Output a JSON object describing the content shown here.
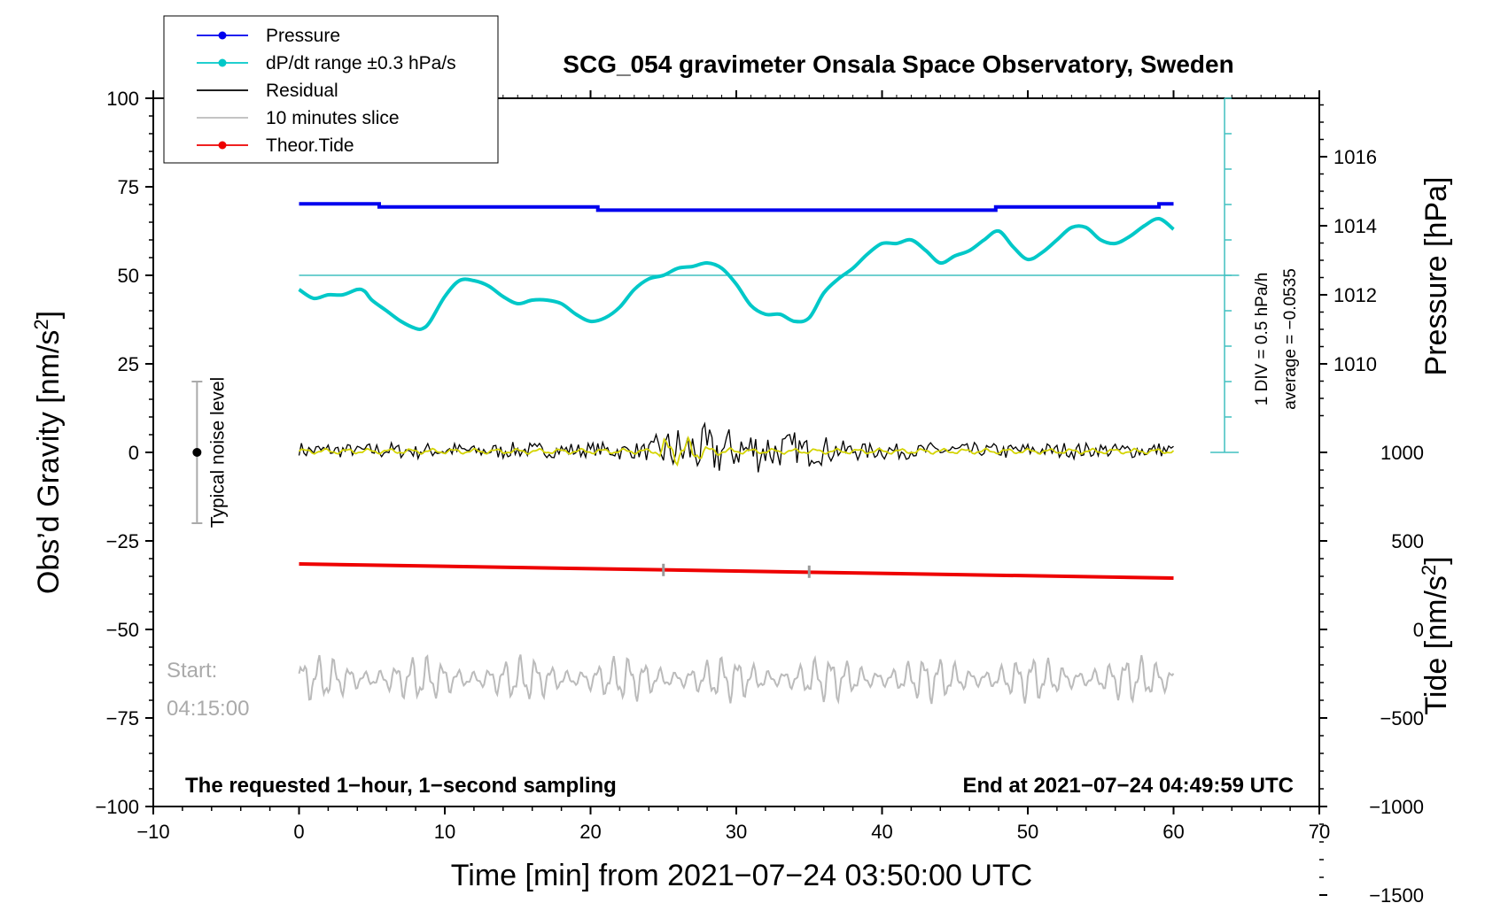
{
  "chart_data": {
    "type": "line",
    "title": "SCG_054 gravimeter Onsala Space Observatory, Sweden",
    "xlabel": "Time [min] from 2021−07−24 03:50:00 UTC",
    "ylabel_left_prefix": "Obs’d Gravity [nm/s",
    "ylabel_left_sup": "2",
    "ylabel_left_suffix": "]",
    "ylabel_pressure": "Pressure [hPa]",
    "ylabel_tide_prefix": "Tide [nm/s",
    "ylabel_tide_sup": "2",
    "ylabel_tide_suffix": "]",
    "xlim": [
      -10,
      70
    ],
    "ylim": [
      -100,
      100
    ],
    "x_ticks": [
      -10,
      0,
      10,
      20,
      30,
      40,
      50,
      60,
      70
    ],
    "x_tick_labels": [
      "−10",
      "0",
      "10",
      "20",
      "30",
      "40",
      "50",
      "60",
      "70"
    ],
    "y_ticks": [
      100,
      75,
      50,
      25,
      0,
      -25,
      -50,
      -75,
      -100
    ],
    "y_tick_labels": [
      "100",
      "75",
      "50",
      "25",
      "0",
      "−25",
      "−50",
      "−75",
      "−100"
    ],
    "pressure_axis": {
      "gravity_per_hpa": 9.75,
      "gravity_at_1010": 25,
      "ticks": [
        1010,
        1012,
        1014,
        1016
      ],
      "tick_labels": [
        "1010",
        "1012",
        "1014",
        "1016"
      ]
    },
    "tide_axis": {
      "gravity_per_unit": 0.05,
      "gravity_at_zero": -50,
      "ticks": [
        1000,
        500,
        0,
        -500,
        -1000,
        -1500
      ],
      "tick_labels": [
        "1000",
        "500",
        "0",
        "−500",
        "−1000",
        "−1500"
      ]
    },
    "legend": [
      {
        "label": "Pressure",
        "color": "#0000ee",
        "marker": true
      },
      {
        "label": "dP/dt range ±0.3 hPa/s",
        "color": "#00c8c8",
        "marker": true
      },
      {
        "label": "Residual",
        "color": "#000000",
        "marker": false
      },
      {
        "label": "10 minutes slice",
        "color": "#bbbbbb",
        "marker": false
      },
      {
        "label": "Theor.Tide",
        "color": "#ee0000",
        "marker": true
      }
    ],
    "series": [
      {
        "name": "Pressure",
        "color": "#0000ee",
        "x": [
          0,
          5.5,
          5.5,
          20.5,
          20.5,
          47.8,
          47.8,
          59.0,
          59.0,
          60
        ],
        "y": [
          70.2,
          70.2,
          69.3,
          69.3,
          68.4,
          68.4,
          69.3,
          69.3,
          70.2,
          70.2
        ]
      },
      {
        "name": "dP/dt range ±0.3 hPa/s",
        "color": "#00c8c8",
        "x": [
          0,
          1,
          2,
          3,
          4,
          4.5,
          5,
          6,
          7,
          8,
          8.5,
          9,
          10,
          11,
          12,
          13,
          14,
          15,
          16,
          17,
          18,
          19,
          20,
          21,
          22,
          23,
          24,
          25,
          26,
          27,
          28,
          29,
          30,
          31,
          32,
          33,
          34,
          35,
          36,
          37,
          38,
          39,
          40,
          41,
          42,
          43,
          44,
          45,
          46,
          47,
          48,
          49,
          50,
          51,
          52,
          53,
          54,
          55,
          56,
          57,
          58,
          59,
          60
        ],
        "y": [
          46,
          43.5,
          44.5,
          44.5,
          46,
          45.5,
          43,
          40,
          37,
          35,
          35,
          37,
          44,
          48.5,
          48.5,
          47,
          44,
          42,
          43,
          43,
          42,
          39,
          37,
          38,
          41,
          46,
          49,
          50,
          52,
          52.5,
          53.5,
          52,
          47.5,
          41.5,
          39,
          39,
          37,
          38,
          45,
          49,
          52,
          56,
          59,
          59,
          60,
          57,
          53.5,
          55.5,
          57,
          60,
          62.5,
          58,
          54.5,
          56.5,
          60,
          63.5,
          63.5,
          60,
          59,
          61,
          64,
          66,
          63
        ]
      },
      {
        "name": "dP/dt average",
        "color": "#40c0c0",
        "x": [
          0,
          64.5
        ],
        "y": [
          50,
          50
        ]
      },
      {
        "name": "Residual",
        "color": "#000000",
        "x_start": 0,
        "x_end": 60,
        "samples": 360,
        "envelope_x": [
          0,
          10,
          20,
          24,
          25,
          27,
          29,
          30,
          33,
          35,
          38,
          45,
          50,
          60
        ],
        "envelope_amp": [
          2.5,
          2.5,
          2.5,
          3,
          7,
          8,
          8,
          8,
          6.5,
          5,
          3,
          2.5,
          2.5,
          2.5
        ],
        "offset": 0.5
      },
      {
        "name": "Residual smoothed",
        "color": "#d4d400",
        "x_start": 0,
        "x_end": 60,
        "samples": 400,
        "envelope_x": [
          0,
          24.5,
          25,
          27,
          28,
          30,
          60
        ],
        "envelope_amp": [
          0.8,
          0.8,
          4,
          4,
          1.5,
          0.8,
          0.8
        ],
        "offset": 0.3
      },
      {
        "name": "Theor.Tide",
        "color": "#ee0000",
        "x": [
          0,
          60
        ],
        "y": [
          -31.5,
          -35.5
        ]
      },
      {
        "name": "Theor.Tide slice markers",
        "color": "#999999",
        "x": [
          25,
          35
        ],
        "y": [
          -33.2,
          -33.7
        ]
      },
      {
        "name": "10 minutes slice",
        "color": "#bbbbbb",
        "x_start": 0,
        "x_end": 60,
        "samples": 600,
        "center": -64,
        "amplitude": 6.5
      }
    ],
    "div_scale": {
      "x": 63.5,
      "y_bottom": 0,
      "y_top": 100,
      "tick_step": 10,
      "labels": [
        "1 DIV = 0.5 hPa/h",
        "average = −0.0535"
      ]
    },
    "typical_noise": {
      "x": -7,
      "center": 0,
      "upper": 20,
      "lower": -20,
      "label": "Typical noise level"
    }
  },
  "annotations": {
    "bottom_left": "The requested 1−hour, 1−second sampling",
    "bottom_right": "End at 2021−07−24 04:49:59 UTC",
    "start_label": "Start:",
    "start_time": "04:15:00"
  }
}
